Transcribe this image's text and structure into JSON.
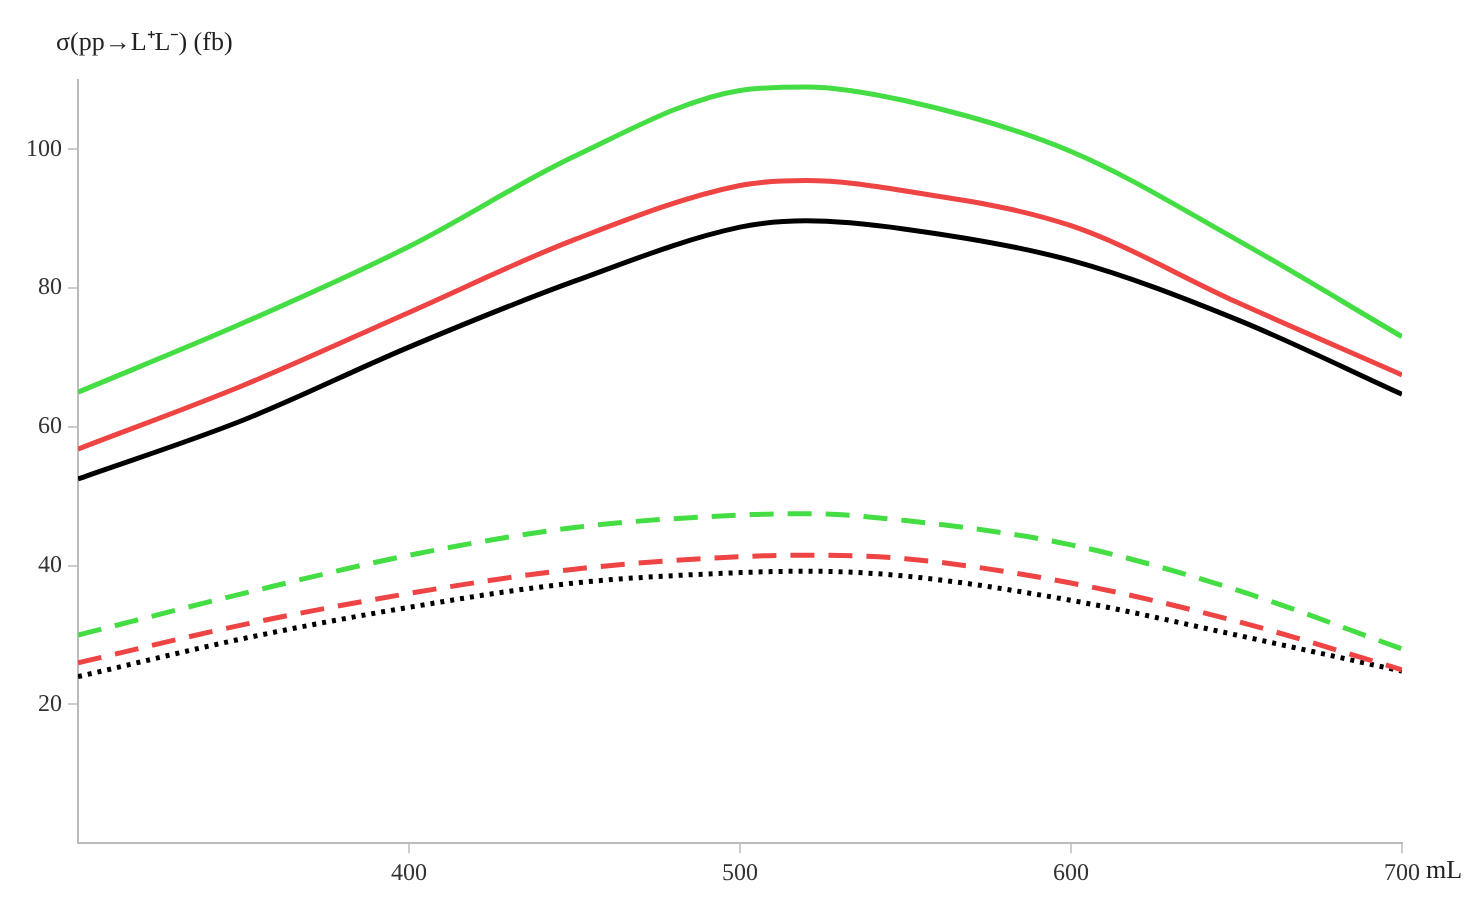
{
  "chart_data": {
    "type": "line",
    "xlabel": "mL",
    "ylabel": "σ(pp→L⁺L⁻) (fb)",
    "x": [
      300,
      350,
      400,
      450,
      500,
      520,
      550,
      600,
      650,
      700
    ],
    "xlim": [
      300,
      700
    ],
    "ylim": [
      0,
      110
    ],
    "xticks": [
      400,
      500,
      600,
      700
    ],
    "yticks": [
      20,
      40,
      60,
      80,
      100
    ],
    "grid": false,
    "legend": false,
    "marker": "none",
    "series": [
      {
        "color": "#44dd44",
        "line_style": "solid",
        "values": [
          65,
          75,
          86,
          99,
          108.5,
          109,
          107,
          99.7,
          87,
          73
        ]
      },
      {
        "color": "#ee4444",
        "line_style": "solid",
        "values": [
          56.8,
          66,
          76.5,
          87,
          94.8,
          95.5,
          94,
          89,
          78,
          67.5
        ]
      },
      {
        "color": "#000000",
        "line_style": "solid",
        "values": [
          52.5,
          61,
          71.5,
          81,
          88.8,
          89.7,
          88.5,
          84,
          75.5,
          64.7
        ]
      },
      {
        "color": "#44dd44",
        "line_style": "dashed",
        "values": [
          30,
          36,
          41.5,
          45.5,
          47.3,
          47.5,
          46.5,
          43,
          36.5,
          28
        ]
      },
      {
        "color": "#ee4444",
        "line_style": "dashed",
        "values": [
          26,
          31.5,
          36,
          39.5,
          41.3,
          41.5,
          41,
          37.5,
          32,
          25
        ]
      },
      {
        "color": "#000000",
        "line_style": "dotted",
        "values": [
          24,
          29.5,
          34,
          37.5,
          39,
          39.2,
          38.5,
          35,
          30,
          24.8
        ]
      }
    ]
  }
}
